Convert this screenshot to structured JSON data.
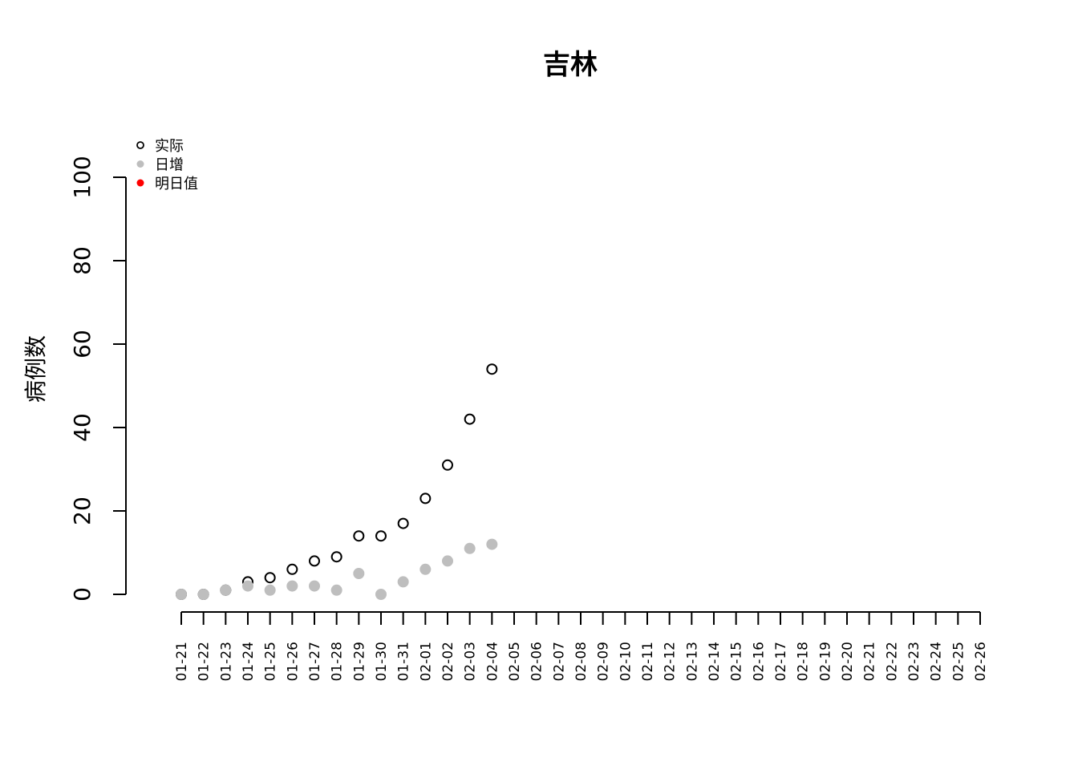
{
  "chart_data": {
    "type": "scatter",
    "title": "吉林",
    "xlabel": "",
    "ylabel": "病例数",
    "ylim": [
      0,
      100
    ],
    "yticks": [
      0,
      20,
      40,
      60,
      80,
      100
    ],
    "grid": false,
    "legend_position": "top-left",
    "categories": [
      "01-21",
      "01-22",
      "01-23",
      "01-24",
      "01-25",
      "01-26",
      "01-27",
      "01-28",
      "01-29",
      "01-30",
      "01-31",
      "02-01",
      "02-02",
      "02-03",
      "02-04",
      "02-05",
      "02-06",
      "02-07",
      "02-08",
      "02-09",
      "02-10",
      "02-11",
      "02-12",
      "02-13",
      "02-14",
      "02-15",
      "02-16",
      "02-17",
      "02-18",
      "02-19",
      "02-20",
      "02-21",
      "02-22",
      "02-23",
      "02-24",
      "02-25",
      "02-26"
    ],
    "series": [
      {
        "name": "实际",
        "marker": "open-circle",
        "color": "#000000",
        "values": [
          0,
          0,
          1,
          3,
          4,
          6,
          8,
          9,
          14,
          14,
          17,
          23,
          31,
          42,
          54
        ]
      },
      {
        "name": "日增",
        "marker": "filled-circle",
        "color": "#bebebe",
        "values": [
          0,
          0,
          1,
          2,
          1,
          2,
          2,
          1,
          5,
          0,
          3,
          6,
          8,
          11,
          12
        ]
      },
      {
        "name": "明日值",
        "marker": "filled-circle",
        "color": "#ff0000",
        "values": []
      }
    ]
  }
}
